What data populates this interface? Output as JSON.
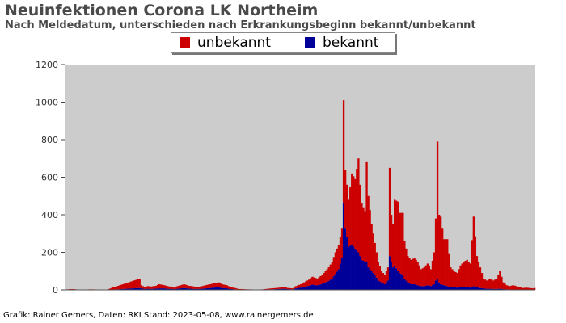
{
  "title": "Neuinfektionen Corona LK Northeim",
  "subtitle": "Nach Meldedatum, unterschieden nach Erkrankungsbeginn bekannt/unbekannt",
  "footer": "Grafik: Rainer Gemers, Daten: RKI Stand: 2023-05-08, www.rainergemers.de",
  "colors": {
    "unbekannt": "#cc0000",
    "bekannt": "#000099",
    "plot_bg": "#cccccc"
  },
  "chart_data": {
    "type": "bar",
    "stacked": true,
    "ylim": [
      0,
      1200
    ],
    "yticks": [
      0,
      200,
      400,
      600,
      800,
      1000,
      1200
    ],
    "grid": false,
    "legend_position": "top-center",
    "series": [
      {
        "name": "unbekannt",
        "key": "unbekannt"
      },
      {
        "name": "bekannt",
        "key": "bekannt"
      }
    ],
    "points": [
      [
        0,
        2,
        1
      ],
      [
        3,
        4,
        2
      ],
      [
        5,
        4,
        2
      ],
      [
        6,
        3,
        1
      ],
      [
        8,
        1,
        0
      ],
      [
        10,
        1,
        0
      ],
      [
        13,
        2,
        0
      ],
      [
        15,
        3,
        1
      ],
      [
        20,
        2,
        0
      ],
      [
        25,
        1,
        0
      ],
      [
        45,
        60,
        10
      ],
      [
        46,
        25,
        8
      ],
      [
        48,
        15,
        5
      ],
      [
        50,
        20,
        6
      ],
      [
        52,
        18,
        5
      ],
      [
        55,
        22,
        7
      ],
      [
        57,
        30,
        8
      ],
      [
        60,
        25,
        8
      ],
      [
        62,
        20,
        6
      ],
      [
        65,
        15,
        5
      ],
      [
        66,
        12,
        4
      ],
      [
        68,
        20,
        6
      ],
      [
        70,
        25,
        8
      ],
      [
        72,
        30,
        10
      ],
      [
        75,
        22,
        7
      ],
      [
        78,
        18,
        5
      ],
      [
        80,
        15,
        5
      ],
      [
        83,
        20,
        6
      ],
      [
        85,
        25,
        8
      ],
      [
        88,
        30,
        10
      ],
      [
        90,
        35,
        12
      ],
      [
        93,
        40,
        14
      ],
      [
        95,
        30,
        10
      ],
      [
        98,
        25,
        8
      ],
      [
        100,
        15,
        5
      ],
      [
        103,
        10,
        3
      ],
      [
        105,
        5,
        2
      ],
      [
        110,
        3,
        1
      ],
      [
        115,
        2,
        0
      ],
      [
        118,
        1,
        0
      ],
      [
        120,
        3,
        1
      ],
      [
        122,
        5,
        2
      ],
      [
        125,
        8,
        3
      ],
      [
        128,
        10,
        4
      ],
      [
        130,
        12,
        5
      ],
      [
        133,
        15,
        6
      ],
      [
        135,
        10,
        4
      ],
      [
        138,
        8,
        3
      ],
      [
        140,
        20,
        8
      ],
      [
        143,
        30,
        12
      ],
      [
        145,
        40,
        16
      ],
      [
        148,
        55,
        22
      ],
      [
        150,
        70,
        28
      ],
      [
        153,
        60,
        24
      ],
      [
        156,
        80,
        32
      ],
      [
        158,
        100,
        40
      ],
      [
        160,
        120,
        48
      ],
      [
        162,
        150,
        60
      ],
      [
        164,
        200,
        85
      ],
      [
        166,
        240,
        110
      ],
      [
        167,
        280,
        140
      ],
      [
        168,
        330,
        170
      ],
      [
        169,
        1010,
        460
      ],
      [
        170,
        640,
        330
      ],
      [
        172,
        480,
        230
      ],
      [
        174,
        620,
        240
      ],
      [
        176,
        590,
        220
      ],
      [
        178,
        700,
        200
      ],
      [
        179,
        560,
        180
      ],
      [
        180,
        460,
        160
      ],
      [
        182,
        420,
        150
      ],
      [
        183,
        680,
        150
      ],
      [
        184,
        500,
        120
      ],
      [
        186,
        350,
        100
      ],
      [
        188,
        250,
        80
      ],
      [
        190,
        150,
        50
      ],
      [
        192,
        100,
        40
      ],
      [
        194,
        80,
        30
      ],
      [
        196,
        120,
        50
      ],
      [
        197,
        650,
        180
      ],
      [
        198,
        400,
        150
      ],
      [
        199,
        350,
        120
      ],
      [
        200,
        480,
        130
      ],
      [
        202,
        470,
        100
      ],
      [
        203,
        410,
        90
      ],
      [
        205,
        410,
        80
      ],
      [
        206,
        260,
        60
      ],
      [
        208,
        180,
        40
      ],
      [
        210,
        160,
        30
      ],
      [
        212,
        170,
        30
      ],
      [
        214,
        150,
        25
      ],
      [
        216,
        110,
        20
      ],
      [
        218,
        120,
        20
      ],
      [
        220,
        140,
        25
      ],
      [
        222,
        110,
        20
      ],
      [
        224,
        200,
        30
      ],
      [
        225,
        380,
        50
      ],
      [
        226,
        790,
        60
      ],
      [
        227,
        400,
        40
      ],
      [
        228,
        390,
        30
      ],
      [
        230,
        270,
        25
      ],
      [
        232,
        270,
        20
      ],
      [
        234,
        120,
        15
      ],
      [
        236,
        100,
        15
      ],
      [
        238,
        90,
        12
      ],
      [
        240,
        130,
        15
      ],
      [
        242,
        150,
        15
      ],
      [
        244,
        160,
        15
      ],
      [
        246,
        140,
        12
      ],
      [
        248,
        390,
        20
      ],
      [
        250,
        180,
        15
      ],
      [
        252,
        120,
        10
      ],
      [
        254,
        60,
        8
      ],
      [
        256,
        50,
        6
      ],
      [
        258,
        60,
        6
      ],
      [
        260,
        50,
        5
      ],
      [
        262,
        60,
        5
      ],
      [
        264,
        100,
        6
      ],
      [
        266,
        40,
        4
      ],
      [
        268,
        25,
        3
      ],
      [
        270,
        20,
        2
      ],
      [
        272,
        25,
        2
      ],
      [
        274,
        20,
        2
      ],
      [
        276,
        15,
        2
      ],
      [
        278,
        10,
        1
      ],
      [
        280,
        12,
        1
      ],
      [
        282,
        10,
        1
      ],
      [
        284,
        8,
        1
      ],
      [
        285,
        10,
        1
      ]
    ]
  }
}
